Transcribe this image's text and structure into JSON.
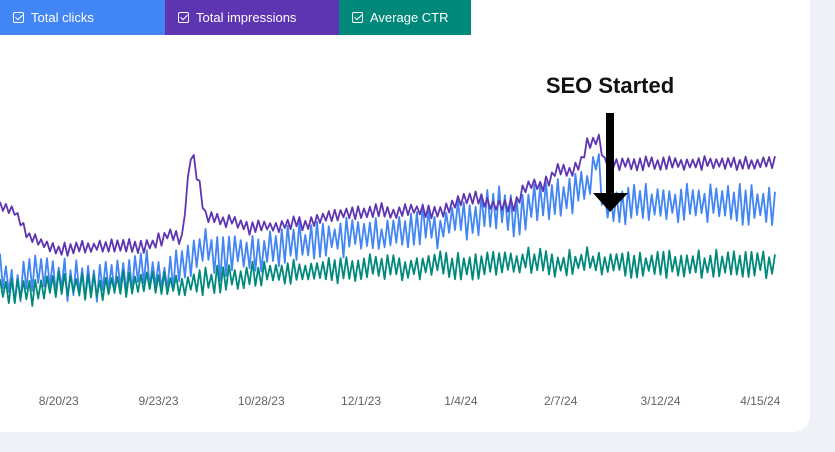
{
  "tabs": [
    {
      "label": "Total clicks",
      "color": "#4285f4",
      "checked": true
    },
    {
      "label": "Total impressions",
      "color": "#5e35b1",
      "checked": true
    },
    {
      "label": "Average CTR",
      "color": "#00897b",
      "checked": true
    }
  ],
  "annotation": {
    "text": "SEO Started",
    "date": "2/28/24"
  },
  "chart_data": {
    "type": "line",
    "x_tick_labels": [
      "8/20/23",
      "9/23/23",
      "10/28/23",
      "12/1/23",
      "1/4/24",
      "2/7/24",
      "3/12/24",
      "4/15/24"
    ],
    "x_range": [
      "7/31/23",
      "4/20/24"
    ],
    "y_axis_labels_shown": false,
    "grid": false,
    "series": [
      {
        "name": "Total impressions",
        "color": "#5e35b1",
        "anchors": [
          [
            0,
            64
          ],
          [
            5,
            62
          ],
          [
            10,
            51
          ],
          [
            20,
            46
          ],
          [
            30,
            47
          ],
          [
            40,
            48
          ],
          [
            50,
            47
          ],
          [
            57,
            52
          ],
          [
            62,
            51
          ],
          [
            65,
            85
          ],
          [
            66,
            84
          ],
          [
            70,
            60
          ],
          [
            75,
            58
          ],
          [
            80,
            58
          ],
          [
            85,
            55
          ],
          [
            90,
            56
          ],
          [
            95,
            55
          ],
          [
            100,
            58
          ],
          [
            105,
            56
          ],
          [
            110,
            59
          ],
          [
            115,
            61
          ],
          [
            120,
            61
          ],
          [
            125,
            62
          ],
          [
            130,
            63
          ],
          [
            135,
            61
          ],
          [
            140,
            63
          ],
          [
            145,
            62
          ],
          [
            150,
            61
          ],
          [
            155,
            65
          ],
          [
            160,
            68
          ],
          [
            163,
            67
          ],
          [
            168,
            64
          ],
          [
            175,
            65
          ],
          [
            180,
            73
          ],
          [
            185,
            72
          ],
          [
            190,
            80
          ],
          [
            195,
            78
          ],
          [
            198,
            83
          ],
          [
            200,
            90
          ],
          [
            204,
            92
          ],
          [
            206,
            82
          ]
        ]
      },
      {
        "name": "Total clicks",
        "color": "#4285f4",
        "anchors": [
          [
            0,
            38
          ],
          [
            5,
            30
          ],
          [
            10,
            37
          ],
          [
            20,
            34
          ],
          [
            30,
            32
          ],
          [
            40,
            36
          ],
          [
            50,
            38
          ],
          [
            55,
            34
          ],
          [
            60,
            37
          ],
          [
            65,
            43
          ],
          [
            70,
            47
          ],
          [
            75,
            42
          ],
          [
            80,
            45
          ],
          [
            85,
            44
          ],
          [
            90,
            46
          ],
          [
            95,
            48
          ],
          [
            100,
            50
          ],
          [
            105,
            48
          ],
          [
            110,
            52
          ],
          [
            115,
            50
          ],
          [
            120,
            52
          ],
          [
            125,
            53
          ],
          [
            130,
            50
          ],
          [
            135,
            53
          ],
          [
            140,
            55
          ],
          [
            145,
            58
          ],
          [
            150,
            54
          ],
          [
            155,
            61
          ],
          [
            160,
            58
          ],
          [
            165,
            62
          ],
          [
            170,
            64
          ],
          [
            175,
            60
          ],
          [
            180,
            63
          ],
          [
            185,
            66
          ],
          [
            190,
            67
          ],
          [
            195,
            70
          ],
          [
            200,
            72
          ],
          [
            203,
            83
          ],
          [
            206,
            65
          ]
        ]
      },
      {
        "name": "Average CTR",
        "color": "#00897b",
        "anchors": [
          [
            0,
            30
          ],
          [
            10,
            28
          ],
          [
            20,
            32
          ],
          [
            30,
            30
          ],
          [
            40,
            31
          ],
          [
            50,
            33
          ],
          [
            60,
            31
          ],
          [
            70,
            33
          ],
          [
            80,
            34
          ],
          [
            90,
            36
          ],
          [
            100,
            36
          ],
          [
            110,
            37
          ],
          [
            120,
            38
          ],
          [
            130,
            39
          ],
          [
            140,
            38
          ],
          [
            150,
            40
          ],
          [
            160,
            39
          ],
          [
            170,
            40
          ],
          [
            180,
            41
          ],
          [
            190,
            40
          ],
          [
            200,
            41
          ],
          [
            206,
            40
          ]
        ]
      }
    ]
  }
}
